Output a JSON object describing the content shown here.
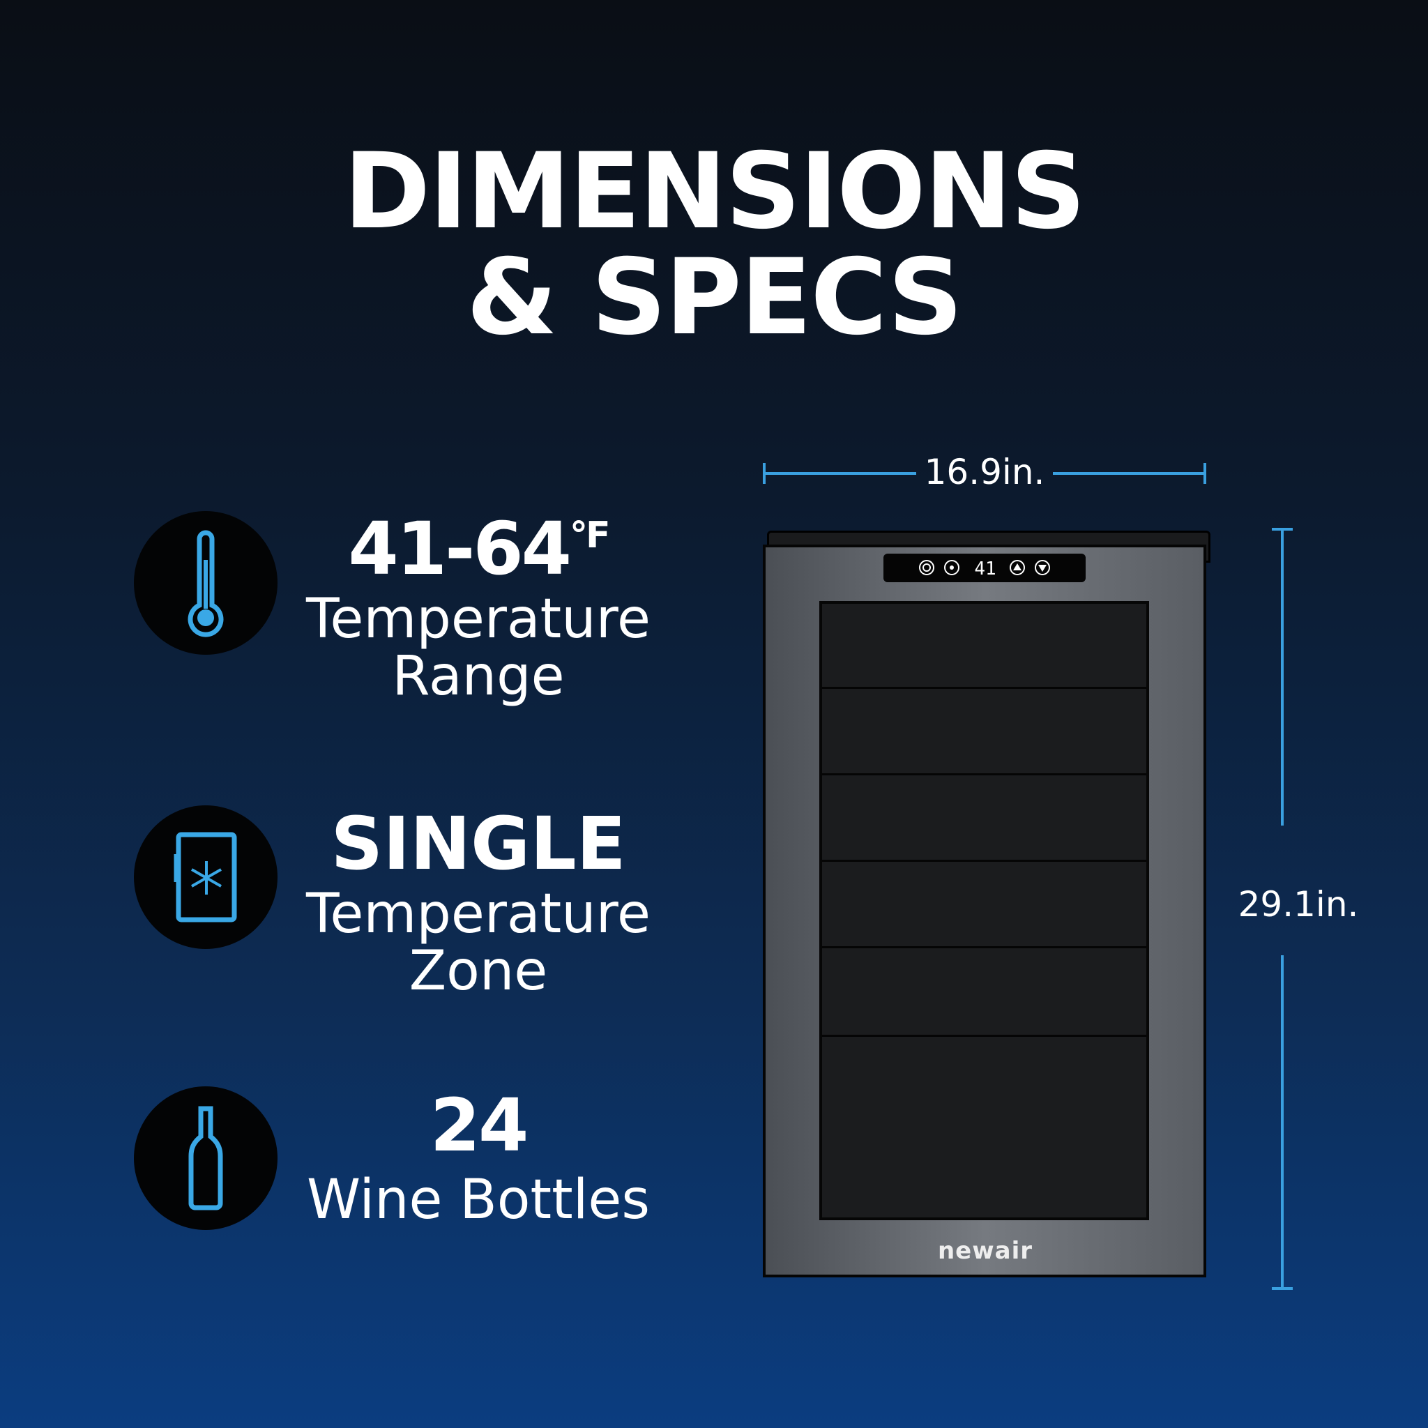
{
  "title": {
    "line1": "DIMENSIONS",
    "line2": "& SPECS"
  },
  "specs": [
    {
      "icon": "thermometer-icon",
      "value": "41-64",
      "unit": "°F",
      "label1": "Temperature",
      "label2": "Range"
    },
    {
      "icon": "fridge-snowflake-icon",
      "value": "SINGLE",
      "label1": "Temperature",
      "label2": "Zone"
    },
    {
      "icon": "wine-bottle-icon",
      "value": "24",
      "label1": "Wine Bottles"
    }
  ],
  "product": {
    "brand_logo": "newair",
    "display_temp": "41",
    "panel_icons": [
      "gear-icon",
      "light-icon",
      "up-arrow-icon",
      "down-arrow-icon"
    ],
    "width": "16.9in.",
    "height": "29.1in."
  },
  "colors": {
    "accent": "#3aa0e0",
    "background_top": "#0a0e15",
    "background_bottom": "#0b3d80"
  }
}
